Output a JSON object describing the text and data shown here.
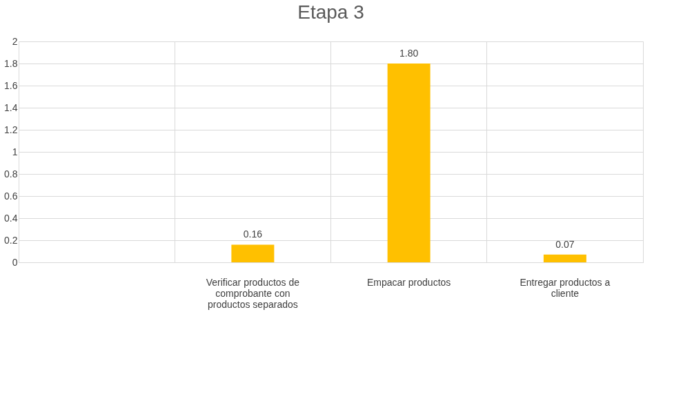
{
  "chart_data": {
    "type": "bar",
    "title": "Etapa 3",
    "categories": [
      null,
      "Verificar productos de comprobante con productos separados",
      "Empacar productos",
      "Entregar productos a cliente"
    ],
    "values": [
      null,
      0.16,
      1.8,
      0.07
    ],
    "value_labels": [
      null,
      "0.16",
      "1.80",
      "0.07"
    ],
    "color": "#ffc000",
    "ylim": [
      0,
      2
    ],
    "yticks": [
      0,
      0.2,
      0.4,
      0.6,
      0.8,
      1,
      1.2,
      1.4,
      1.6,
      1.8,
      2
    ],
    "grid": true
  }
}
